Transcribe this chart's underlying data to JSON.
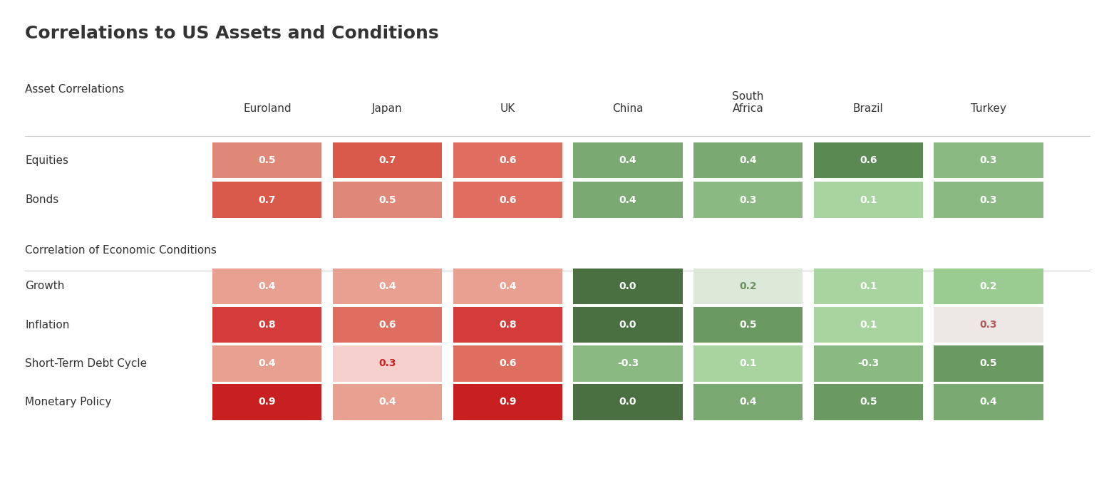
{
  "title": "Correlations to US Assets and Conditions",
  "section1_label": "Asset Correlations",
  "section2_label": "Correlation of Economic Conditions",
  "columns": [
    "Euroland",
    "Japan",
    "UK",
    "China",
    "South\nAfrica",
    "Brazil",
    "Turkey"
  ],
  "rows_section1": [
    "Equities",
    "Bonds"
  ],
  "rows_section2": [
    "Growth",
    "Inflation",
    "Short-Term Debt Cycle",
    "Monetary Policy"
  ],
  "data_section1": [
    [
      0.5,
      0.7,
      0.6,
      0.4,
      0.4,
      0.6,
      0.3
    ],
    [
      0.7,
      0.5,
      0.6,
      0.4,
      0.3,
      0.1,
      0.3
    ]
  ],
  "data_section2": [
    [
      0.4,
      0.4,
      0.4,
      0.0,
      0.2,
      0.1,
      0.2
    ],
    [
      0.8,
      0.6,
      0.8,
      0.0,
      0.5,
      0.1,
      0.3
    ],
    [
      0.4,
      0.3,
      0.6,
      -0.3,
      0.1,
      -0.3,
      0.5
    ],
    [
      0.9,
      0.4,
      0.9,
      0.0,
      0.4,
      0.5,
      0.4
    ]
  ],
  "special_cells": {
    "s2_r0_c4": {
      "bg": "#dce8d8",
      "text_color": "#6b8f5e"
    },
    "s2_r1_c6": {
      "bg": "#ede8e5",
      "text_color": "#b05a5a"
    },
    "s2_r2_c1": {
      "text_color": "#cc2222",
      "bg": "#f5d0cc"
    }
  },
  "background_color": "#ffffff",
  "text_color": "#333333",
  "font_size_title": 18,
  "font_size_header": 11,
  "font_size_cell": 10,
  "font_size_section": 11,
  "line_color": "#cccccc"
}
